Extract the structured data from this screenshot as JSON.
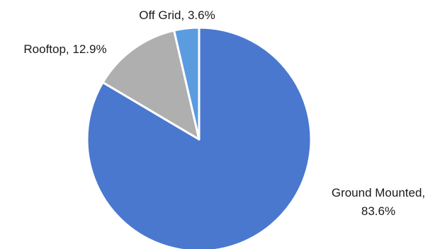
{
  "chart_data": {
    "type": "pie",
    "title": "",
    "start_angle_deg": 0,
    "direction": "clockwise",
    "slices": [
      {
        "label": "Ground Mounted",
        "value": 83.6,
        "display_line1": "Ground Mounted,",
        "display_line2": "83.6%",
        "color": "#4a78cf"
      },
      {
        "label": "Rooftop",
        "value": 12.9,
        "display_line1": "Rooftop, 12.9%",
        "display_line2": "",
        "color": "#afafaf"
      },
      {
        "label": "Off Grid",
        "value": 3.6,
        "display_line1": "Off Grid, 3.6%",
        "display_line2": "",
        "color": "#5b9be0"
      }
    ],
    "legend": "none"
  }
}
